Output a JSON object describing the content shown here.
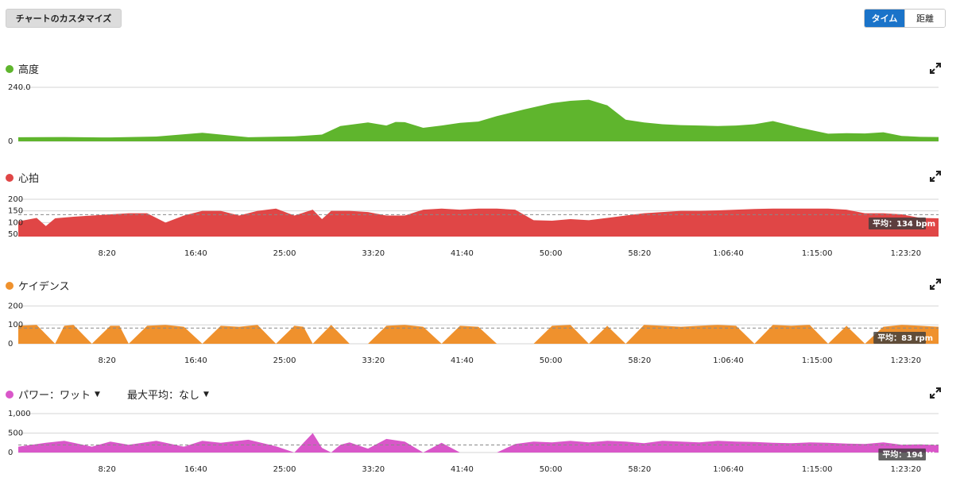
{
  "toolbar": {
    "customize_label": "チャートのカスタマイズ",
    "toggle_time_label": "タイム",
    "toggle_distance_label": "距離"
  },
  "colors": {
    "elevation": "#5fb52d",
    "heart_rate": "#e04646",
    "cadence": "#ef912d",
    "power": "#d957c9",
    "accent": "#1a73c9"
  },
  "icons": {
    "expand": "expand-icon",
    "dropdown": "caret-down-icon"
  },
  "charts": {
    "elevation": {
      "title": "高度",
      "yticks": [
        "240.0",
        "0"
      ]
    },
    "heart_rate": {
      "title": "心拍",
      "yticks": [
        "200",
        "150",
        "100",
        "50"
      ],
      "avg_label": "平均：134 bpm"
    },
    "cadence": {
      "title": "ケイデンス",
      "yticks": [
        "200",
        "100",
        "0"
      ],
      "avg_label": "平均：83 rpm"
    },
    "power": {
      "title": "パワー：ワット",
      "secondary_title": "最大平均：なし",
      "yticks": [
        "1,000",
        "500",
        "0"
      ],
      "avg_label": "平均：194 W"
    }
  },
  "chart_data": [
    {
      "type": "area",
      "series": [
        {
          "name": "高度",
          "x": [
            0,
            5,
            10,
            15,
            20,
            25,
            30,
            33,
            35,
            38,
            40,
            41,
            42,
            44,
            46,
            48,
            50,
            52,
            55,
            58,
            60,
            62,
            64,
            66,
            68,
            70,
            72,
            74,
            76,
            78,
            80,
            82,
            85,
            88,
            90,
            92,
            94,
            96,
            98,
            100
          ],
          "values": [
            18,
            19,
            17,
            21,
            38,
            18,
            22,
            30,
            68,
            84,
            70,
            86,
            85,
            60,
            70,
            82,
            88,
            112,
            142,
            170,
            180,
            185,
            160,
            96,
            84,
            76,
            72,
            70,
            68,
            70,
            76,
            90,
            60,
            34,
            36,
            35,
            40,
            24,
            20,
            19
          ]
        }
      ],
      "ylim": [
        0,
        240
      ],
      "ylabel": "",
      "xlabel": ""
    },
    {
      "type": "area",
      "series": [
        {
          "name": "心拍",
          "x": [
            0,
            2,
            3,
            4,
            6,
            8,
            10,
            12,
            14,
            16,
            18,
            20,
            22,
            24,
            26,
            28,
            30,
            32,
            33,
            34,
            36,
            38,
            40,
            42,
            44,
            46,
            48,
            50,
            52,
            54,
            56,
            58,
            60,
            62,
            64,
            66,
            68,
            70,
            72,
            74,
            76,
            78,
            80,
            82,
            84,
            86,
            88,
            90,
            92,
            94,
            96,
            98,
            100
          ],
          "values": [
            105,
            120,
            85,
            118,
            125,
            130,
            135,
            140,
            140,
            100,
            130,
            150,
            150,
            130,
            150,
            160,
            130,
            155,
            115,
            150,
            150,
            145,
            130,
            130,
            155,
            160,
            155,
            160,
            160,
            155,
            110,
            108,
            115,
            110,
            120,
            130,
            140,
            145,
            150,
            150,
            152,
            155,
            158,
            160,
            160,
            160,
            160,
            155,
            140,
            140,
            135,
            120,
            118
          ]
        }
      ],
      "average": 134,
      "yticks": [
        50,
        100,
        150,
        200
      ],
      "ylim": [
        40,
        210
      ]
    },
    {
      "type": "area",
      "series": [
        {
          "name": "ケイデンス",
          "x": [
            0,
            2,
            4,
            5,
            6,
            8,
            10,
            11,
            12,
            14,
            16,
            18,
            20,
            22,
            24,
            26,
            28,
            30,
            31,
            32,
            34,
            36,
            38,
            40,
            42,
            44,
            46,
            48,
            50,
            52,
            54,
            56,
            58,
            60,
            62,
            64,
            66,
            68,
            70,
            72,
            74,
            76,
            78,
            80,
            82,
            84,
            86,
            88,
            90,
            92,
            94,
            96,
            98,
            100
          ],
          "values": [
            95,
            100,
            0,
            95,
            100,
            0,
            95,
            95,
            0,
            95,
            100,
            90,
            0,
            95,
            90,
            100,
            0,
            95,
            90,
            0,
            100,
            0,
            0,
            95,
            100,
            90,
            0,
            95,
            90,
            0,
            0,
            0,
            95,
            100,
            0,
            95,
            0,
            100,
            95,
            90,
            95,
            100,
            95,
            0,
            100,
            95,
            100,
            0,
            95,
            0,
            90,
            100,
            95,
            90
          ]
        }
      ],
      "average": 83,
      "yticks": [
        0,
        100,
        200
      ],
      "ylim": [
        0,
        210
      ]
    },
    {
      "type": "area",
      "series": [
        {
          "name": "パワー：ワット",
          "x": [
            0,
            3,
            5,
            8,
            10,
            12,
            15,
            18,
            20,
            22,
            25,
            28,
            30,
            32,
            33,
            34,
            35,
            36,
            38,
            40,
            42,
            44,
            46,
            48,
            50,
            52,
            54,
            56,
            58,
            60,
            62,
            64,
            66,
            68,
            70,
            72,
            74,
            76,
            78,
            80,
            82,
            84,
            86,
            88,
            90,
            92,
            94,
            96,
            98,
            100
          ],
          "values": [
            150,
            250,
            300,
            150,
            280,
            200,
            300,
            150,
            300,
            250,
            330,
            160,
            0,
            500,
            120,
            0,
            200,
            260,
            100,
            350,
            280,
            0,
            250,
            0,
            0,
            0,
            220,
            280,
            260,
            300,
            260,
            300,
            280,
            240,
            300,
            280,
            260,
            300,
            280,
            270,
            250,
            240,
            260,
            250,
            230,
            220,
            260,
            200,
            210,
            190
          ]
        }
      ],
      "average": 194,
      "yticks": [
        0,
        500,
        1000
      ],
      "ylim": [
        0,
        1000
      ]
    }
  ],
  "time_axis": {
    "ticks": [
      "8:20",
      "16:40",
      "25:00",
      "33:20",
      "41:40",
      "50:00",
      "58:20",
      "1:06:40",
      "1:15:00",
      "1:23:20"
    ],
    "total_minutes": 86.4
  }
}
